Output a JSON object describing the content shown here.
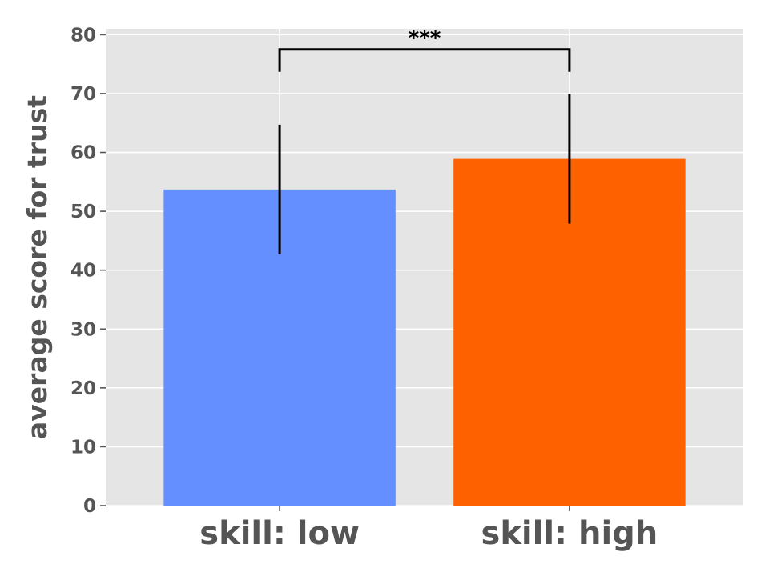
{
  "chart_data": {
    "type": "bar",
    "categories": [
      "skill: low",
      "skill: high"
    ],
    "values": [
      53.7,
      58.9
    ],
    "errors": [
      11.0,
      11.0
    ],
    "colors": [
      "#648fff",
      "#fe6100"
    ],
    "xlabel": "",
    "ylabel": "average score for trust",
    "ylim": [
      0,
      81
    ],
    "yticks": [
      0,
      10,
      20,
      30,
      40,
      50,
      60,
      70,
      80
    ],
    "grid": true,
    "background": "#e5e5e5",
    "significance": {
      "label": "***",
      "between": [
        0,
        1
      ],
      "y": 77.5
    }
  }
}
